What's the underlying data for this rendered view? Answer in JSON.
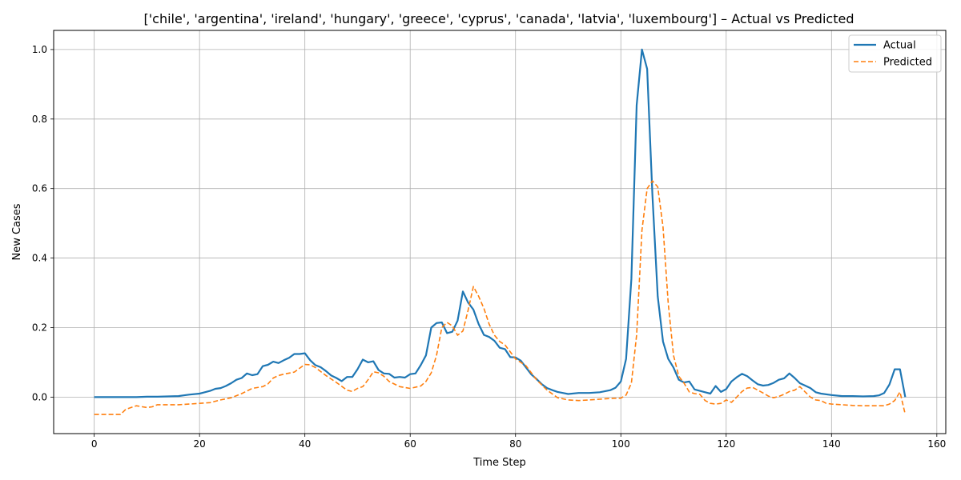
{
  "chart_data": {
    "type": "line",
    "title": "['chile', 'argentina', 'ireland', 'hungary', 'greece', 'cyprus', 'canada', 'latvia', 'luxembourg'] – Actual vs Predicted",
    "xlabel": "Time Step",
    "ylabel": "New Cases",
    "xlim": [
      -7.7,
      161.7
    ],
    "ylim": [
      -0.105,
      1.055
    ],
    "xticks": [
      0,
      20,
      40,
      60,
      80,
      100,
      120,
      140,
      160
    ],
    "yticks": [
      0.0,
      0.2,
      0.4,
      0.6,
      0.8,
      1.0
    ],
    "grid": true,
    "legend_position": "top-right",
    "series": [
      {
        "name": "Actual",
        "color": "#1f77b4",
        "style": "solid",
        "x": [
          0,
          2,
          4,
          6,
          8,
          10,
          12,
          14,
          16,
          17,
          18,
          20,
          22,
          23,
          24,
          25,
          26,
          27,
          28,
          29,
          30,
          31,
          32,
          33,
          34,
          35,
          36,
          37,
          38,
          39,
          40,
          41,
          42,
          43,
          44,
          45,
          46,
          47,
          48,
          49,
          50,
          51,
          52,
          53,
          54,
          55,
          56,
          57,
          58,
          59,
          60,
          61,
          62,
          63,
          64,
          65,
          66,
          67,
          68,
          69,
          70,
          71,
          72,
          73,
          74,
          75,
          76,
          77,
          78,
          79,
          80,
          81,
          82,
          83,
          84,
          85,
          86,
          87,
          88,
          89,
          90,
          92,
          94,
          96,
          98,
          99,
          100,
          101,
          102,
          103,
          104,
          105,
          106,
          107,
          108,
          109,
          110,
          111,
          112,
          113,
          114,
          115,
          116,
          117,
          118,
          119,
          120,
          121,
          122,
          123,
          124,
          125,
          126,
          127,
          128,
          129,
          130,
          131,
          132,
          133,
          134,
          135,
          136,
          137,
          138,
          140,
          142,
          144,
          146,
          148,
          149,
          150,
          151,
          152,
          153,
          154
        ],
        "y": [
          0.0,
          0.0,
          0.0,
          0.0,
          0.0,
          0.001,
          0.001,
          0.002,
          0.003,
          0.005,
          0.007,
          0.01,
          0.018,
          0.024,
          0.026,
          0.032,
          0.04,
          0.05,
          0.055,
          0.068,
          0.063,
          0.066,
          0.089,
          0.093,
          0.102,
          0.098,
          0.106,
          0.113,
          0.124,
          0.124,
          0.126,
          0.106,
          0.092,
          0.086,
          0.075,
          0.062,
          0.055,
          0.046,
          0.058,
          0.058,
          0.08,
          0.108,
          0.1,
          0.103,
          0.078,
          0.068,
          0.067,
          0.056,
          0.058,
          0.056,
          0.066,
          0.068,
          0.092,
          0.12,
          0.2,
          0.213,
          0.215,
          0.184,
          0.188,
          0.22,
          0.304,
          0.272,
          0.252,
          0.21,
          0.179,
          0.173,
          0.162,
          0.142,
          0.138,
          0.115,
          0.114,
          0.105,
          0.085,
          0.065,
          0.052,
          0.037,
          0.026,
          0.02,
          0.015,
          0.012,
          0.009,
          0.012,
          0.012,
          0.014,
          0.02,
          0.027,
          0.045,
          0.11,
          0.34,
          0.84,
          1.0,
          0.944,
          0.58,
          0.29,
          0.16,
          0.11,
          0.085,
          0.05,
          0.042,
          0.045,
          0.022,
          0.018,
          0.014,
          0.01,
          0.032,
          0.015,
          0.023,
          0.045,
          0.057,
          0.067,
          0.06,
          0.048,
          0.037,
          0.033,
          0.035,
          0.041,
          0.05,
          0.054,
          0.068,
          0.055,
          0.04,
          0.033,
          0.026,
          0.014,
          0.01,
          0.006,
          0.003,
          0.003,
          0.002,
          0.003,
          0.005,
          0.012,
          0.036,
          0.08,
          0.08,
          0.0
        ]
      },
      {
        "name": "Predicted",
        "color": "#ff7f0e",
        "style": "dashed",
        "x": [
          0,
          2,
          4,
          5,
          6,
          8,
          10,
          11,
          12,
          14,
          16,
          18,
          20,
          22,
          24,
          26,
          28,
          30,
          32,
          33,
          34,
          35,
          36,
          38,
          40,
          41,
          42,
          44,
          46,
          48,
          49,
          50,
          51,
          52,
          53,
          54,
          55,
          56,
          58,
          60,
          62,
          63,
          64,
          65,
          66,
          67,
          68,
          69,
          70,
          71,
          72,
          73,
          74,
          75,
          76,
          77,
          78,
          79,
          80,
          82,
          84,
          86,
          88,
          90,
          92,
          94,
          96,
          98,
          100,
          101,
          102,
          103,
          104,
          105,
          106,
          107,
          108,
          109,
          110,
          111,
          112,
          113,
          114,
          115,
          116,
          117,
          118,
          119,
          120,
          121,
          122,
          123,
          124,
          125,
          126,
          127,
          128,
          129,
          130,
          131,
          132,
          133,
          134,
          135,
          136,
          137,
          138,
          139,
          140,
          142,
          144,
          146,
          148,
          150,
          151,
          152,
          153,
          154
        ],
        "y": [
          -0.05,
          -0.05,
          -0.05,
          -0.05,
          -0.035,
          -0.025,
          -0.03,
          -0.028,
          -0.022,
          -0.022,
          -0.022,
          -0.02,
          -0.018,
          -0.016,
          -0.008,
          -0.002,
          0.01,
          0.025,
          0.03,
          0.038,
          0.055,
          0.062,
          0.066,
          0.072,
          0.094,
          0.093,
          0.085,
          0.062,
          0.042,
          0.02,
          0.016,
          0.025,
          0.03,
          0.05,
          0.073,
          0.07,
          0.06,
          0.045,
          0.03,
          0.025,
          0.032,
          0.045,
          0.07,
          0.12,
          0.2,
          0.215,
          0.205,
          0.178,
          0.19,
          0.25,
          0.318,
          0.29,
          0.255,
          0.21,
          0.178,
          0.16,
          0.15,
          0.13,
          0.11,
          0.09,
          0.05,
          0.02,
          -0.002,
          -0.008,
          -0.01,
          -0.008,
          -0.006,
          -0.004,
          -0.003,
          0.006,
          0.04,
          0.18,
          0.48,
          0.6,
          0.622,
          0.605,
          0.49,
          0.27,
          0.12,
          0.06,
          0.04,
          0.015,
          0.01,
          0.008,
          -0.01,
          -0.018,
          -0.02,
          -0.018,
          -0.008,
          -0.015,
          0.0,
          0.016,
          0.026,
          0.028,
          0.02,
          0.012,
          0.003,
          -0.002,
          0.002,
          0.008,
          0.016,
          0.02,
          0.03,
          0.015,
          0.0,
          -0.008,
          -0.01,
          -0.018,
          -0.02,
          -0.022,
          -0.024,
          -0.025,
          -0.025,
          -0.025,
          -0.02,
          -0.01,
          0.015,
          -0.05
        ]
      }
    ]
  }
}
